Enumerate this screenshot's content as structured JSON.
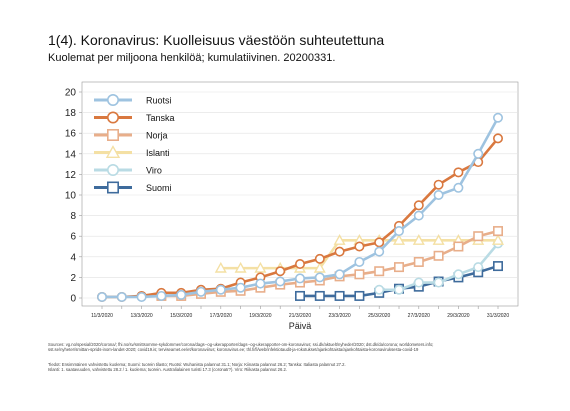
{
  "title": "1(4). Koronavirus: Kuolleisuus väestöön suhteutettuna",
  "subtitle": "Kuolemat per miljoona henkilöä; kumulatiivinen. 20200331.",
  "chart_data": {
    "type": "line",
    "xlabel": "Päivä",
    "ylabel": "",
    "ylim": [
      0,
      20
    ],
    "yticks": [
      "0",
      "2",
      "4",
      "6",
      "8",
      "10",
      "12",
      "14",
      "16",
      "18",
      "20"
    ],
    "categories": [
      "11/3/2020",
      "12/3/2020",
      "13/3/2020",
      "14/3/2020",
      "15/3/2020",
      "16/3/2020",
      "17/3/2020",
      "18/3/2020",
      "19/3/2020",
      "20/3/2020",
      "21/3/2020",
      "22/3/2020",
      "23/3/2020",
      "24/3/2020",
      "25/3/2020",
      "26/3/2020",
      "27/3/2020",
      "28/3/2020",
      "29/3/2020",
      "30/3/2020",
      "31/3/2020"
    ],
    "xticks": [
      "11/3/2020",
      "13/3/2020",
      "15/3/2020",
      "17/3/2020",
      "19/3/2020",
      "21/3/2020",
      "23/3/2020",
      "25/3/2020",
      "27/3/2020",
      "29/3/2020",
      "31/3/2020"
    ],
    "grid": true,
    "legend_position": "top-left",
    "series": [
      {
        "name": "Ruotsi",
        "color": "#9ec3e0",
        "marker": "circle",
        "values": [
          0.1,
          0.1,
          0.1,
          0.2,
          0.3,
          0.6,
          0.8,
          1.0,
          1.4,
          1.6,
          1.9,
          2.0,
          2.3,
          3.5,
          4.5,
          6.5,
          8.0,
          10.0,
          10.7,
          14.0,
          17.5
        ]
      },
      {
        "name": "Tanska",
        "color": "#d9783f",
        "marker": "circle",
        "values": [
          0.1,
          0.1,
          0.2,
          0.5,
          0.5,
          0.8,
          0.9,
          1.5,
          2.0,
          2.6,
          3.3,
          3.8,
          4.5,
          5.0,
          5.4,
          7.0,
          9.0,
          11.0,
          12.2,
          13.2,
          15.5
        ]
      },
      {
        "name": "Norja",
        "color": "#e8ae8a",
        "marker": "square",
        "values": [
          null,
          null,
          null,
          0.2,
          0.2,
          0.4,
          0.6,
          0.7,
          1.0,
          1.3,
          1.5,
          1.7,
          2.1,
          2.3,
          2.6,
          3.0,
          3.5,
          4.1,
          5.0,
          6.0,
          6.5
        ]
      },
      {
        "name": "Islanti",
        "color": "#f4e0a4",
        "marker": "triangle",
        "values": [
          null,
          null,
          null,
          null,
          null,
          null,
          2.9,
          2.9,
          2.9,
          2.9,
          2.9,
          2.9,
          5.6,
          5.6,
          5.6,
          5.6,
          5.6,
          5.6,
          5.6,
          5.6,
          5.6
        ]
      },
      {
        "name": "Viro",
        "color": "#b9dbe4",
        "marker": "circle",
        "values": [
          null,
          null,
          null,
          null,
          null,
          null,
          null,
          null,
          null,
          null,
          null,
          null,
          null,
          null,
          0.8,
          0.8,
          1.5,
          1.5,
          2.3,
          3.0,
          5.3
        ]
      },
      {
        "name": "Suomi",
        "color": "#3e6b9c",
        "marker": "square",
        "values": [
          null,
          null,
          null,
          null,
          null,
          null,
          null,
          null,
          null,
          null,
          0.2,
          0.2,
          0.2,
          0.2,
          0.5,
          0.9,
          1.1,
          1.6,
          2.0,
          2.5,
          3.1
        ]
      }
    ]
  },
  "sources": {
    "line1": "Sources: vg.no/spesial/2020/corona/; fhi.no/sv/smittsomme-sykdommer/corona/dags--og-ukerapporter/dags--og-ukerapporter-om-koronavirus; ssi.dk/aktuelt/nyheder/2020; dst.dk/da/corona; worldometers.info;",
    "line2": "sst.se/nyheter/smittan-sprids-inom-landet-2020; covid19.is; terviseamet.ee/et/koronaviirus; koronavirus.ee; thl.fi/fi/web/infektiotaudit-ja-rokotukset/ajankohtaista/ajankohtaista-koronaviruksesta-covid-19",
    "line3": "Tiedot: Ensimmäinen vahvistettu kuolema; Suomi: tuorein tilasto; Ruotsi: Wuhanista palannut 31.1; Norja: Kiinasta palannut 26.2; Tanska: Italiasta palannut 27.2.",
    "line4": "Islanti: 1. saatavuuden, vahvistettu 28.2 / 1. kuolema; tuorein. Australialainen turisti 17.3 (coronatr?). Viro: Riikasta palannut 26.2."
  }
}
